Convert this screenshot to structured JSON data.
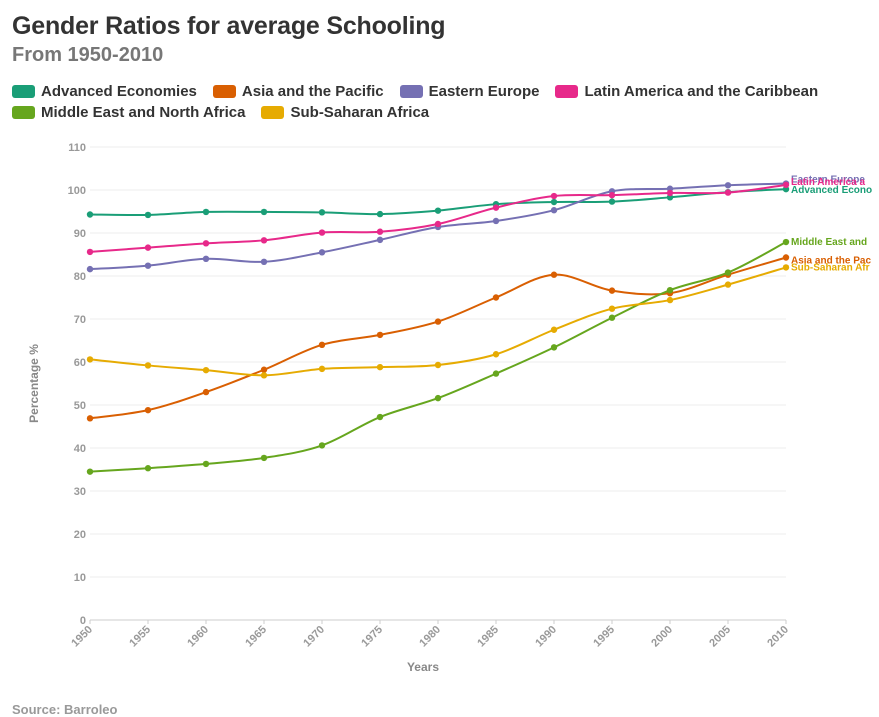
{
  "title": "Gender Ratios for average Schooling",
  "subtitle": "From 1950-2010",
  "source": "Source: Barroleo",
  "chart_data": {
    "type": "line",
    "title": "Gender Ratios for average Schooling",
    "subtitle": "From 1950-2010",
    "xlabel": "Years",
    "ylabel": "Percentage %",
    "x": [
      1950,
      1955,
      1960,
      1965,
      1970,
      1975,
      1980,
      1985,
      1990,
      1995,
      2000,
      2005,
      2010
    ],
    "ylim": [
      0,
      110
    ],
    "yticks": [
      0,
      10,
      20,
      30,
      40,
      50,
      60,
      70,
      80,
      90,
      100,
      110
    ],
    "grid": true,
    "legend_position": "top-left",
    "series": [
      {
        "name": "Advanced Economies",
        "color": "#1a9e77",
        "end_label": "Advanced Econo",
        "values": [
          94.3,
          94.2,
          94.9,
          94.9,
          94.8,
          94.4,
          95.2,
          96.7,
          97.2,
          97.3,
          98.3,
          99.5,
          100.2
        ]
      },
      {
        "name": "Asia and the Pacific",
        "color": "#d95f02",
        "end_label": "Asia and the Pac",
        "values": [
          46.9,
          48.8,
          53.0,
          58.2,
          64.0,
          66.3,
          69.4,
          75.0,
          80.3,
          76.6,
          76.0,
          80.3,
          84.3
        ]
      },
      {
        "name": "Eastern Europe",
        "color": "#7570b3",
        "end_label": "Eastern Europe",
        "values": [
          81.6,
          82.4,
          84.0,
          83.3,
          85.5,
          88.4,
          91.4,
          92.8,
          95.3,
          99.7,
          100.3,
          101.1,
          101.5
        ]
      },
      {
        "name": "Latin America and the Caribbean",
        "color": "#e7298a",
        "end_label": "Latin America a",
        "values": [
          85.6,
          86.6,
          87.6,
          88.3,
          90.1,
          90.3,
          92.1,
          95.9,
          98.6,
          98.8,
          99.3,
          99.4,
          101.2
        ]
      },
      {
        "name": "Middle East and North Africa",
        "color": "#66a61e",
        "end_label": "Middle East and",
        "values": [
          34.5,
          35.3,
          36.3,
          37.7,
          40.6,
          47.2,
          51.6,
          57.3,
          63.4,
          70.3,
          76.7,
          80.8,
          87.9
        ]
      },
      {
        "name": "Sub-Saharan Africa",
        "color": "#e6ab02",
        "end_label": "Sub-Saharan Afr",
        "values": [
          60.6,
          59.2,
          58.1,
          56.9,
          58.4,
          58.8,
          59.3,
          61.8,
          67.5,
          72.4,
          74.4,
          78.0,
          82.0
        ]
      }
    ]
  }
}
